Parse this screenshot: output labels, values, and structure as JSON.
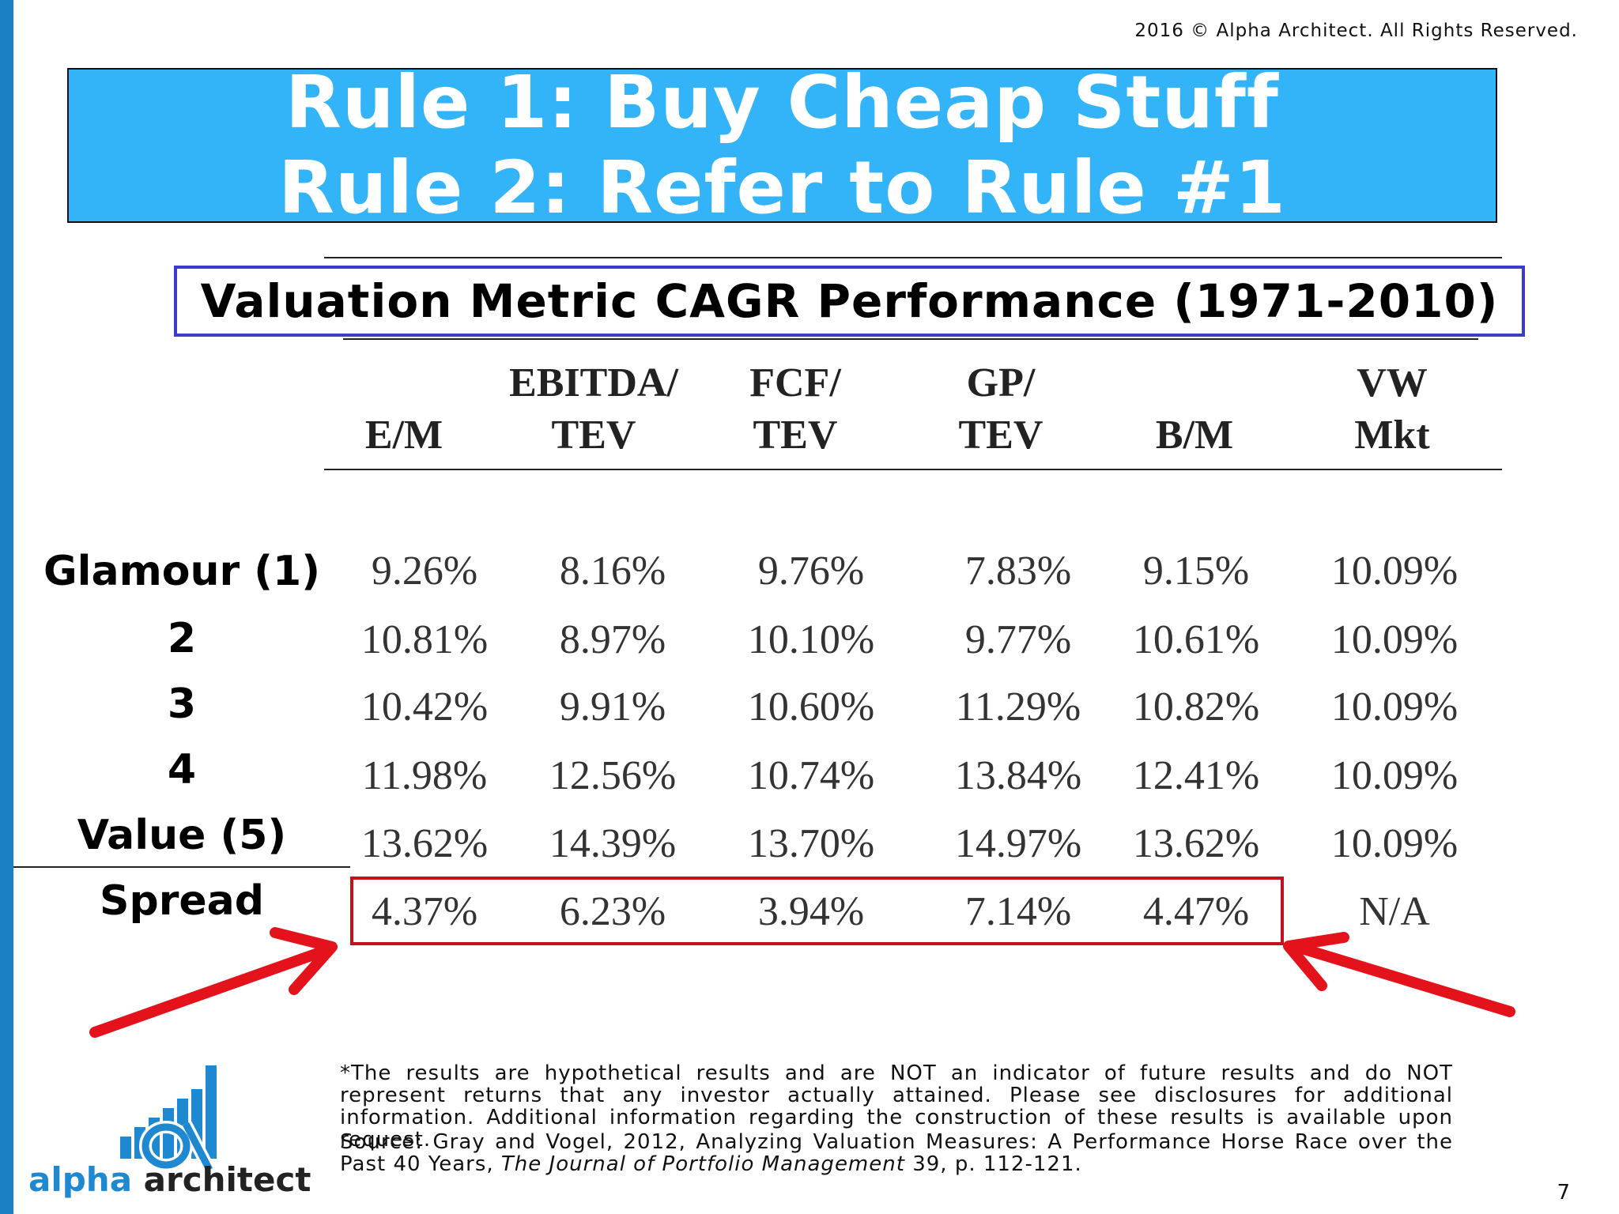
{
  "copyright": "2016 © Alpha Architect. All Rights Reserved.",
  "title": {
    "line1": "Rule 1: Buy Cheap Stuff",
    "line2": "Rule 2: Refer to Rule #1"
  },
  "subtitle": "Valuation Metric CAGR Performance (1971-2010)",
  "table": {
    "columns": [
      {
        "line1": "",
        "line2": "E/M"
      },
      {
        "line1": "EBITDA/",
        "line2": "TEV"
      },
      {
        "line1": "FCF/",
        "line2": "TEV"
      },
      {
        "line1": "GP/",
        "line2": "TEV"
      },
      {
        "line1": "",
        "line2": "B/M"
      },
      {
        "line1": "VW",
        "line2": "Mkt"
      }
    ],
    "rows": [
      {
        "label": "Glamour (1)",
        "values": [
          "9.26%",
          "8.16%",
          "9.76%",
          "7.83%",
          "9.15%",
          "10.09%"
        ]
      },
      {
        "label": "2",
        "values": [
          "10.81%",
          "8.97%",
          "10.10%",
          "9.77%",
          "10.61%",
          "10.09%"
        ]
      },
      {
        "label": "3",
        "values": [
          "10.42%",
          "9.91%",
          "10.60%",
          "11.29%",
          "10.82%",
          "10.09%"
        ]
      },
      {
        "label": "4",
        "values": [
          "11.98%",
          "12.56%",
          "10.74%",
          "13.84%",
          "12.41%",
          "10.09%"
        ]
      },
      {
        "label": "Value (5)",
        "values": [
          "13.62%",
          "14.39%",
          "13.70%",
          "14.97%",
          "13.62%",
          "10.09%"
        ]
      },
      {
        "label": "Spread",
        "values": [
          "4.37%",
          "6.23%",
          "3.94%",
          "7.14%",
          "4.47%",
          "N/A"
        ]
      }
    ]
  },
  "footnote": "*The results are hypothetical results and are NOT an indicator of future results and do NOT represent returns that any investor actually attained. Please see disclosures for additional information. Additional information regarding the construction of these results is available upon request.",
  "source_prefix": "Source: Gray and Vogel, 2012, Analyzing Valuation Measures: A Performance Horse Race over the Past 40 Years, ",
  "source_journal": "The Journal of Portfolio Management",
  "source_suffix": " 39, p. 112-121.",
  "logo": {
    "word1": "alpha",
    "word2": " architect"
  },
  "page_number": "7",
  "colors": {
    "title_bg": "#33b3f8",
    "accent_blue": "#1a7fc4",
    "highlight_red": "#c0141c",
    "subtitle_border": "#3b3bcc"
  }
}
